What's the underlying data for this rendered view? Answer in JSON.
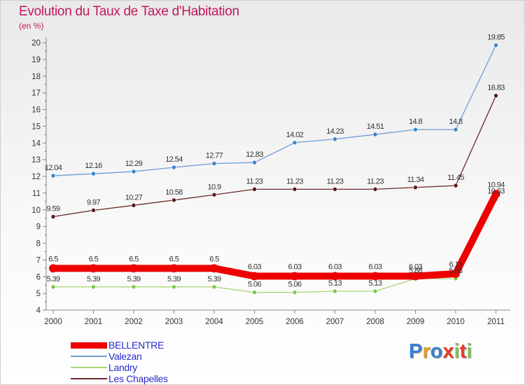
{
  "title": "Evolution du Taux de Taxe d'Habitation",
  "subtitle": "(en %)",
  "brand": "Proxiti",
  "chart_data": {
    "type": "line",
    "title": "Evolution du Taux de Taxe d'Habitation",
    "ylabel": "(en %)",
    "ylim": [
      4,
      20
    ],
    "yticks": [
      4,
      5,
      6,
      7,
      8,
      9,
      10,
      11,
      12,
      13,
      14,
      15,
      16,
      17,
      18,
      19,
      20
    ],
    "x": [
      "2000",
      "2001",
      "2002",
      "2003",
      "2004",
      "2005",
      "2006",
      "2007",
      "2008",
      "2009",
      "2010",
      "2011"
    ],
    "legend_position": "bottom-left",
    "grid": false,
    "series": [
      {
        "name": "Valezan",
        "color": "#6f9ed4",
        "point_color": "#3a84c8",
        "values": [
          12.04,
          12.16,
          12.29,
          12.54,
          12.77,
          12.83,
          14.02,
          14.23,
          14.51,
          14.8,
          14.8,
          19.85
        ],
        "labels": [
          "12.04",
          "12.16",
          "12.29",
          "12.54",
          "12.77",
          "12.83",
          "14.02",
          "14.23",
          "14.51",
          "14.8",
          "14.8",
          "19.85"
        ]
      },
      {
        "name": "Les Chapelles",
        "color": "#6b2a2a",
        "point_color": "#5a1818",
        "values": [
          9.59,
          9.97,
          10.27,
          10.58,
          10.9,
          11.23,
          11.23,
          11.23,
          11.23,
          11.34,
          11.45,
          16.83
        ],
        "labels": [
          "9.59",
          "9.97",
          "10.27",
          "10.58",
          "10.9",
          "11.23",
          "11.23",
          "11.23",
          "11.23",
          "11.34",
          "11.45",
          "16.83"
        ]
      },
      {
        "name": "Landry",
        "color": "#a8d878",
        "point_color": "#7cc84a",
        "values": [
          5.39,
          5.39,
          5.39,
          5.39,
          5.39,
          5.06,
          5.06,
          5.13,
          5.13,
          5.88,
          5.88,
          10.63
        ],
        "labels": [
          "5.39",
          "5.39",
          "5.39",
          "5.39",
          "5.39",
          "5.06",
          "5.06",
          "5.13",
          "5.13",
          "5.88",
          "5.88",
          "10.63"
        ]
      },
      {
        "name": "BELLENTRE",
        "color": "#ee0000",
        "point_color": "#ee0000",
        "values": [
          6.5,
          6.5,
          6.5,
          6.5,
          6.5,
          6.03,
          6.03,
          6.03,
          6.03,
          6.03,
          6.18,
          10.94
        ],
        "labels": [
          "6.5",
          "6.5",
          "6.5",
          "6.5",
          "6.5",
          "6.03",
          "6.03",
          "6.03",
          "6.03",
          "6.03",
          "6.18",
          "10.94"
        ]
      }
    ]
  },
  "legend": [
    {
      "label": "BELLENTRE",
      "color": "#ee0000"
    },
    {
      "label": "Valezan",
      "color": "#6f9ed4"
    },
    {
      "label": "Landry",
      "color": "#a8d878"
    },
    {
      "label": "Les Chapelles",
      "color": "#6b2a2a"
    }
  ],
  "brand_colors": [
    "#3a7fd0",
    "#e8a020",
    "#3a7fd0",
    "#e83a2a",
    "#7cc84a",
    "#e83a2a",
    "#7cc84a"
  ]
}
